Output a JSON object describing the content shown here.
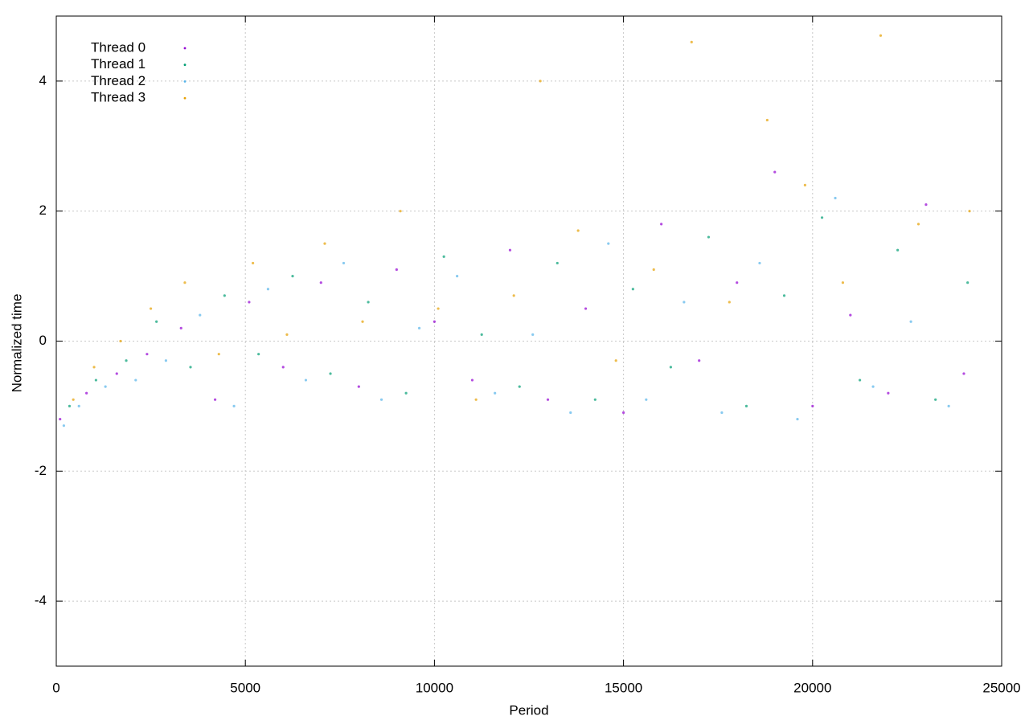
{
  "chart_data": {
    "type": "scatter",
    "x_label": "Period",
    "y_label": "Normalized time",
    "xlim": [
      0,
      25000
    ],
    "ylim": [
      -5,
      5
    ],
    "xticks": [
      0,
      5000,
      10000,
      15000,
      20000,
      25000
    ],
    "yticks": [
      -4,
      -2,
      0,
      2,
      4
    ],
    "grid": true,
    "legend": "top-left",
    "series": [
      {
        "name": "Thread 0",
        "color": "#9400d3",
        "x": [
          100,
          800,
          1600,
          2400,
          3300,
          4200,
          5100,
          6000,
          7000,
          8000,
          9000,
          10000,
          11000,
          12000,
          13000,
          14000,
          15000,
          16000,
          17000,
          18000,
          19000,
          20000,
          21000,
          22000,
          23000,
          24000
        ],
        "values": [
          -1.2,
          -0.8,
          -0.5,
          -0.2,
          0.2,
          -0.9,
          0.6,
          -0.4,
          0.9,
          -0.7,
          1.1,
          0.3,
          -0.6,
          1.4,
          -0.9,
          0.5,
          -1.1,
          1.8,
          -0.3,
          0.9,
          2.6,
          -1.0,
          0.4,
          -0.8,
          2.1,
          -0.5
        ]
      },
      {
        "name": "Thread 1",
        "color": "#009e73",
        "x": [
          350,
          1050,
          1850,
          2650,
          3550,
          4450,
          5350,
          6250,
          7250,
          8250,
          9250,
          10250,
          11250,
          12250,
          13250,
          14250,
          15250,
          16250,
          17250,
          18250,
          19250,
          20250,
          21250,
          22250,
          23250,
          24100
        ],
        "values": [
          -1.0,
          -0.6,
          -0.3,
          0.3,
          -0.4,
          0.7,
          -0.2,
          1.0,
          -0.5,
          0.6,
          -0.8,
          1.3,
          0.1,
          -0.7,
          1.2,
          -0.9,
          0.8,
          -0.4,
          1.6,
          -1.0,
          0.7,
          1.9,
          -0.6,
          1.4,
          -0.9,
          0.9
        ]
      },
      {
        "name": "Thread 2",
        "color": "#56b4e9",
        "x": [
          200,
          600,
          1300,
          2100,
          2900,
          3800,
          4700,
          5600,
          6600,
          7600,
          8600,
          9600,
          10600,
          11600,
          12600,
          13600,
          14600,
          15600,
          16600,
          17600,
          18600,
          19600,
          20600,
          21600,
          22600,
          23600
        ],
        "values": [
          -1.3,
          -1.0,
          -0.7,
          -0.6,
          -0.3,
          0.4,
          -1.0,
          0.8,
          -0.6,
          1.2,
          -0.9,
          0.2,
          1.0,
          -0.8,
          0.1,
          -1.1,
          1.5,
          -0.9,
          0.6,
          -1.1,
          1.2,
          -1.2,
          2.2,
          -0.7,
          0.3,
          -1.0
        ]
      },
      {
        "name": "Thread 3",
        "color": "#e69f00",
        "x": [
          450,
          1000,
          1700,
          2500,
          3400,
          4300,
          5200,
          6100,
          7100,
          8100,
          9100,
          10100,
          11100,
          12100,
          12800,
          13800,
          14800,
          15800,
          16800,
          17800,
          18800,
          19800,
          20800,
          21800,
          22800,
          24150
        ],
        "values": [
          -0.9,
          -0.4,
          0.0,
          0.5,
          0.9,
          -0.2,
          1.2,
          0.1,
          1.5,
          0.3,
          2.0,
          0.5,
          -0.9,
          0.7,
          4.0,
          1.7,
          -0.3,
          1.1,
          4.6,
          0.6,
          3.4,
          2.4,
          0.9,
          4.7,
          1.8,
          2.0
        ]
      }
    ]
  }
}
